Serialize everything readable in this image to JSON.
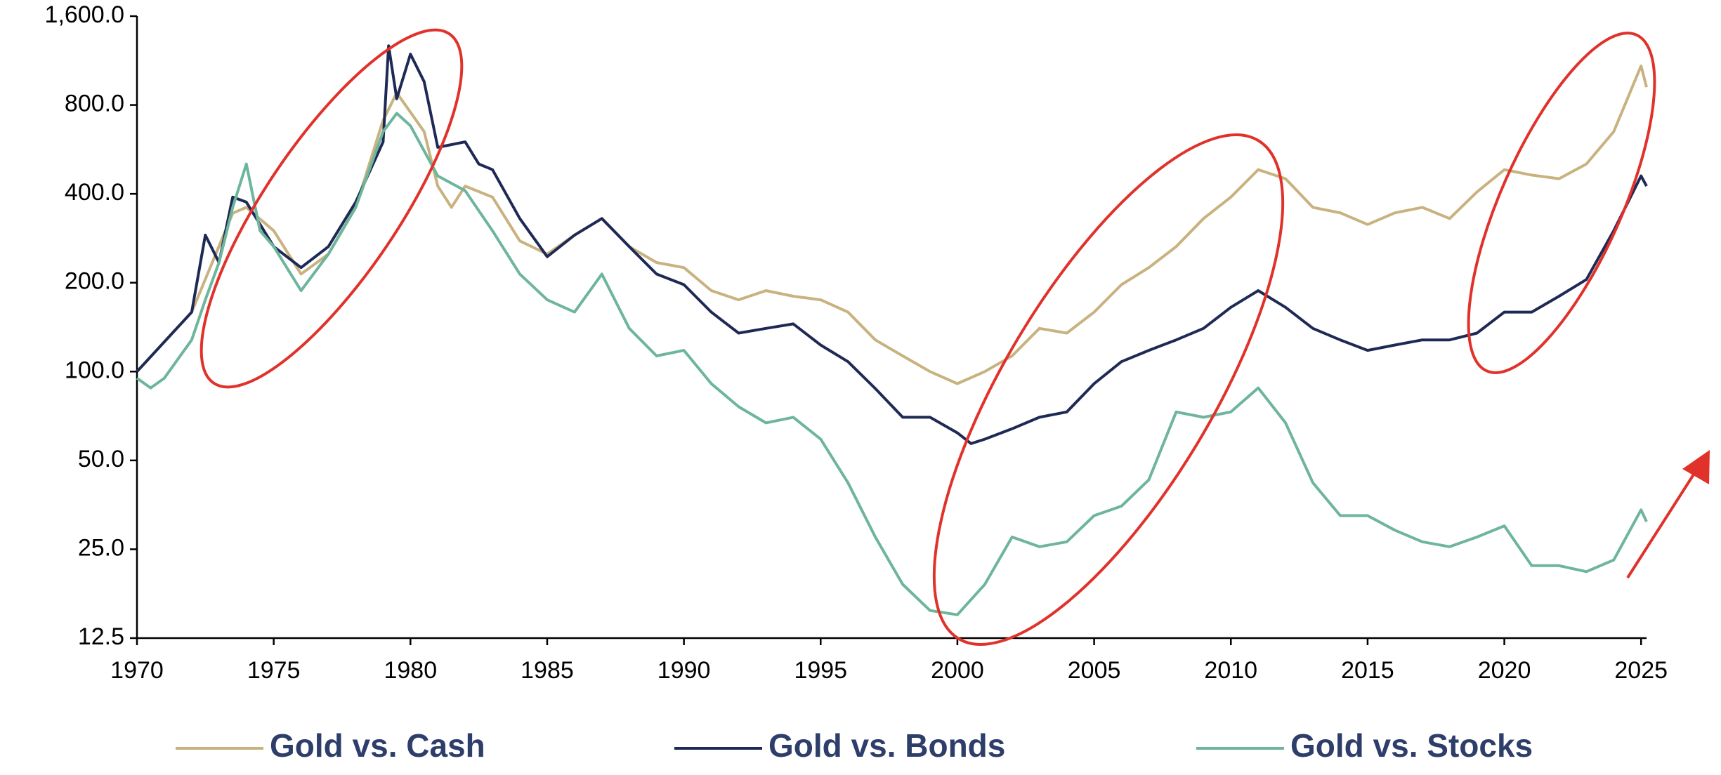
{
  "chart_data": {
    "type": "line",
    "log_y": true,
    "xlim": [
      1970,
      2025.2
    ],
    "xticks": [
      1970,
      1975,
      1980,
      1985,
      1990,
      1995,
      2000,
      2005,
      2010,
      2015,
      2020,
      2025
    ],
    "ylim": [
      12.5,
      1600
    ],
    "yticks": [
      12.5,
      {
        "value": 25,
        "label": "25.0"
      },
      {
        "value": 50,
        "label": "50.0"
      },
      {
        "value": 100,
        "label": "100.0"
      },
      {
        "value": 200,
        "label": "200.0"
      },
      {
        "value": 400,
        "label": "400.0"
      },
      {
        "value": 800,
        "label": "800.0"
      },
      {
        "value": 1600,
        "label": "1,600.0"
      }
    ],
    "legend": "bottom",
    "series": [
      {
        "name": "Gold vs. Cash",
        "color": "#c8b27f",
        "x": [
          1970,
          1972,
          1973.5,
          1974,
          1975,
          1976,
          1977,
          1978,
          1979,
          1979.5,
          1980.5,
          1981,
          1981.5,
          1982,
          1983,
          1984,
          1985,
          1986,
          1987,
          1988,
          1989,
          1990,
          1991,
          1992,
          1993,
          1994,
          1995,
          1996,
          1997,
          1998,
          1999,
          2000,
          2001,
          2002,
          2003,
          2004,
          2005,
          2006,
          2007,
          2008,
          2009,
          2010,
          2011,
          2012,
          2013,
          2014,
          2015,
          2016,
          2017,
          2018,
          2019,
          2020,
          2021,
          2022,
          2023,
          2024,
          2025,
          2025.2
        ],
        "values": [
          100,
          159,
          344,
          360,
          300,
          214,
          250,
          360,
          710,
          880,
          650,
          425,
          360,
          425,
          390,
          277,
          250,
          290,
          330,
          265,
          234,
          225,
          188,
          175,
          188,
          180,
          175,
          159,
          128,
          113,
          100,
          91,
          100,
          113,
          140,
          135,
          159,
          197,
          225,
          265,
          330,
          390,
          483,
          450,
          360,
          345,
          315,
          345,
          360,
          330,
          406,
          483,
          463,
          450,
          505,
          650,
          1085,
          920
        ]
      },
      {
        "name": "Gold vs. Bonds",
        "color": "#1e2a55",
        "x": [
          1970,
          1972,
          1972.5,
          1973,
          1973.5,
          1974,
          1975,
          1976,
          1977,
          1978,
          1979,
          1979.2,
          1979.5,
          1980,
          1980.5,
          1981,
          1982,
          1982.5,
          1983,
          1984,
          1985,
          1986,
          1987,
          1988,
          1989,
          1990,
          1991,
          1992,
          1993,
          1994,
          1995,
          1996,
          1997,
          1998,
          1999,
          2000,
          2000.5,
          2001,
          2002,
          2003,
          2004,
          2005,
          2006,
          2007,
          2008,
          2009,
          2010,
          2011,
          2012,
          2013,
          2014,
          2015,
          2016,
          2017,
          2018,
          2019,
          2020,
          2021,
          2022,
          2023,
          2024,
          2025,
          2025.2
        ],
        "values": [
          100,
          159,
          290,
          234,
          390,
          375,
          265,
          225,
          265,
          375,
          600,
          1270,
          840,
          1190,
          960,
          575,
          600,
          505,
          483,
          330,
          245,
          290,
          330,
          265,
          214,
          197,
          159,
          135,
          140,
          145,
          123,
          108,
          87.6,
          70,
          70,
          62,
          57,
          59,
          64,
          70,
          73,
          91,
          108,
          118,
          128,
          140,
          165,
          188,
          165,
          140,
          128,
          118,
          123,
          128,
          128,
          135,
          159,
          159,
          180,
          205,
          300,
          460,
          425
        ]
      },
      {
        "name": "Gold vs. Stocks",
        "color": "#6db59c",
        "x": [
          1970,
          1970.5,
          1971,
          1972,
          1972.5,
          1973,
          1973.5,
          1974,
          1974.5,
          1975,
          1976,
          1977,
          1978,
          1979,
          1979.5,
          1980,
          1981,
          1982,
          1983,
          1984,
          1985,
          1986,
          1987,
          1988,
          1989,
          1990,
          1991,
          1992,
          1993,
          1994,
          1995,
          1996,
          1997,
          1998,
          1999,
          2000,
          2001,
          2002,
          2003,
          2004,
          2005,
          2006,
          2007,
          2008,
          2009,
          2010,
          2011,
          2012,
          2013,
          2014,
          2015,
          2016,
          2017,
          2018,
          2019,
          2020,
          2021,
          2022,
          2023,
          2024,
          2025,
          2025.2
        ],
        "values": [
          95,
          88,
          95,
          128,
          175,
          234,
          360,
          505,
          300,
          265,
          188,
          250,
          360,
          650,
          750,
          680,
          460,
          410,
          300,
          214,
          175,
          159,
          214,
          140,
          113,
          118,
          91,
          76,
          67,
          70,
          59,
          42,
          27.5,
          19,
          15.5,
          15,
          19,
          27.5,
          25.5,
          26.5,
          32.5,
          35,
          43,
          73,
          70,
          73,
          88,
          67,
          42,
          32.5,
          32.5,
          29,
          26.5,
          25.5,
          27.5,
          30,
          22,
          22,
          21,
          23,
          34,
          31
        ]
      }
    ]
  }
}
